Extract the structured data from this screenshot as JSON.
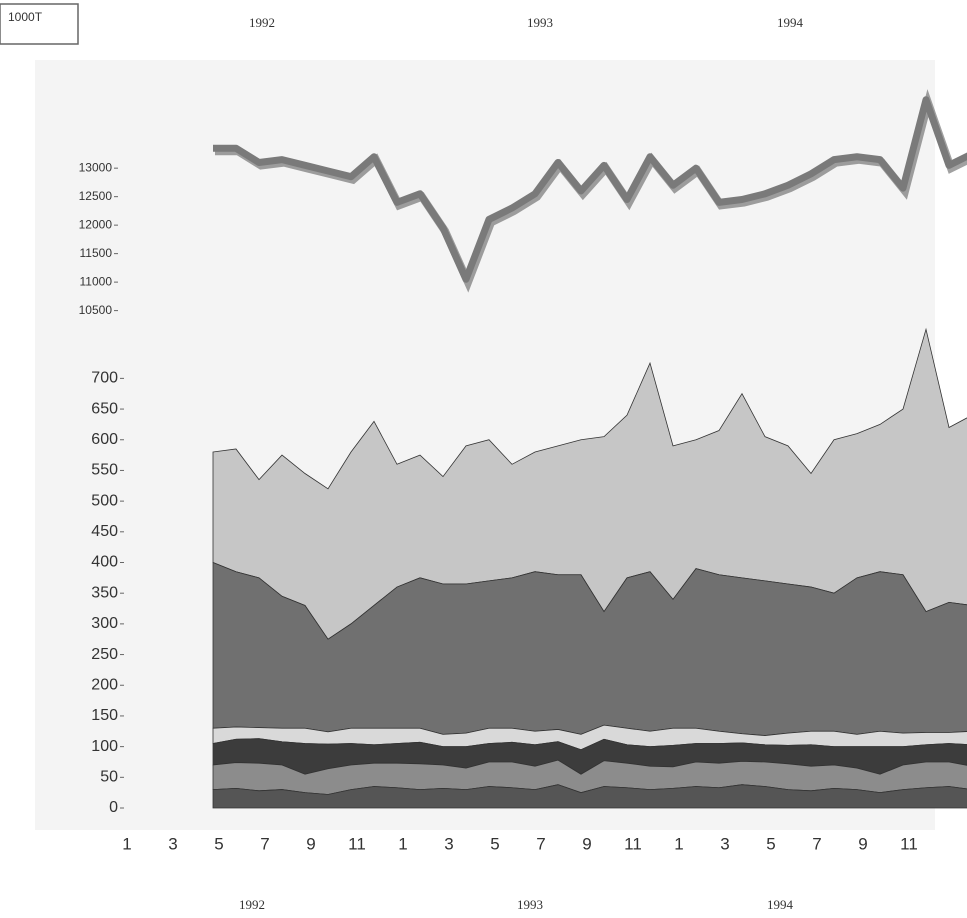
{
  "chart_data": [
    {
      "type": "line",
      "unit_label": "1000T",
      "years": [
        "1992",
        "1993",
        "1994"
      ],
      "values": [
        null,
        null,
        13350,
        13350,
        13100,
        13150,
        13050,
        12950,
        12850,
        13200,
        12400,
        12550,
        11950,
        11050,
        12100,
        12300,
        12550,
        13100,
        12600,
        13050,
        12450,
        13200,
        12700,
        13000,
        12400,
        12450,
        12550,
        12700,
        12900,
        13150,
        13200,
        13150,
        12650,
        14200,
        13050,
        13250
      ],
      "color": "#7a7a7a",
      "ylim": [
        10300,
        14600
      ],
      "yticks": [
        13000,
        12500,
        12000,
        11500,
        11000,
        10500
      ]
    },
    {
      "type": "area",
      "stacked": true,
      "years": [
        "1992",
        "1993",
        "1994"
      ],
      "categories": [
        "1",
        null,
        "3",
        null,
        "5",
        null,
        "7",
        null,
        "9",
        null,
        "11",
        null,
        "1",
        null,
        "3",
        null,
        "5",
        null,
        "7",
        null,
        "9",
        null,
        "11",
        null,
        "1",
        null,
        "3",
        null,
        "5",
        null,
        "7",
        null,
        "9",
        null,
        "11",
        null
      ],
      "series": [
        {
          "color": "#555555",
          "values": [
            null,
            null,
            30,
            32,
            28,
            30,
            25,
            22,
            30,
            35,
            33,
            30,
            32,
            30,
            35,
            33,
            30,
            38,
            25,
            35,
            33,
            30,
            32,
            35,
            33,
            38,
            35,
            30,
            28,
            32,
            30,
            25,
            30,
            33,
            35,
            30
          ]
        },
        {
          "color": "#8c8c8c",
          "values": [
            null,
            null,
            40,
            42,
            45,
            40,
            30,
            42,
            40,
            38,
            40,
            42,
            38,
            35,
            40,
            42,
            38,
            40,
            30,
            42,
            40,
            38,
            35,
            40,
            40,
            38,
            40,
            42,
            40,
            38,
            35,
            30,
            40,
            42,
            40,
            38
          ]
        },
        {
          "color": "#3c3c3c",
          "values": [
            null,
            null,
            35,
            38,
            40,
            38,
            50,
            40,
            35,
            30,
            32,
            35,
            30,
            35,
            30,
            32,
            35,
            30,
            40,
            35,
            30,
            32,
            35,
            30,
            32,
            30,
            28,
            30,
            35,
            30,
            35,
            45,
            30,
            28,
            30,
            35
          ]
        },
        {
          "color": "#d9d9d9",
          "values": [
            null,
            null,
            25,
            20,
            18,
            22,
            25,
            20,
            25,
            27,
            25,
            23,
            20,
            22,
            25,
            23,
            22,
            20,
            25,
            23,
            27,
            25,
            28,
            25,
            20,
            15,
            15,
            20,
            22,
            25,
            20,
            25,
            22,
            20,
            18,
            22
          ]
        },
        {
          "color": "#707070",
          "values": [
            null,
            null,
            270,
            253,
            244,
            215,
            200,
            151,
            170,
            200,
            230,
            245,
            245,
            243,
            240,
            245,
            260,
            252,
            260,
            185,
            245,
            260,
            210,
            260,
            255,
            254,
            252,
            243,
            235,
            225,
            255,
            260,
            258,
            197,
            212,
            205
          ]
        },
        {
          "color": "#c6c6c6",
          "values": [
            null,
            null,
            180,
            200,
            160,
            230,
            215,
            245,
            280,
            300,
            200,
            200,
            175,
            225,
            230,
            185,
            195,
            210,
            220,
            285,
            265,
            340,
            250,
            210,
            235,
            300,
            235,
            225,
            185,
            250,
            235,
            240,
            270,
            460,
            285,
            310
          ]
        }
      ],
      "ylim": [
        0,
        800
      ],
      "yticks": [
        0,
        50,
        100,
        150,
        200,
        250,
        300,
        350,
        400,
        450,
        500,
        550,
        600,
        650,
        700
      ]
    }
  ]
}
